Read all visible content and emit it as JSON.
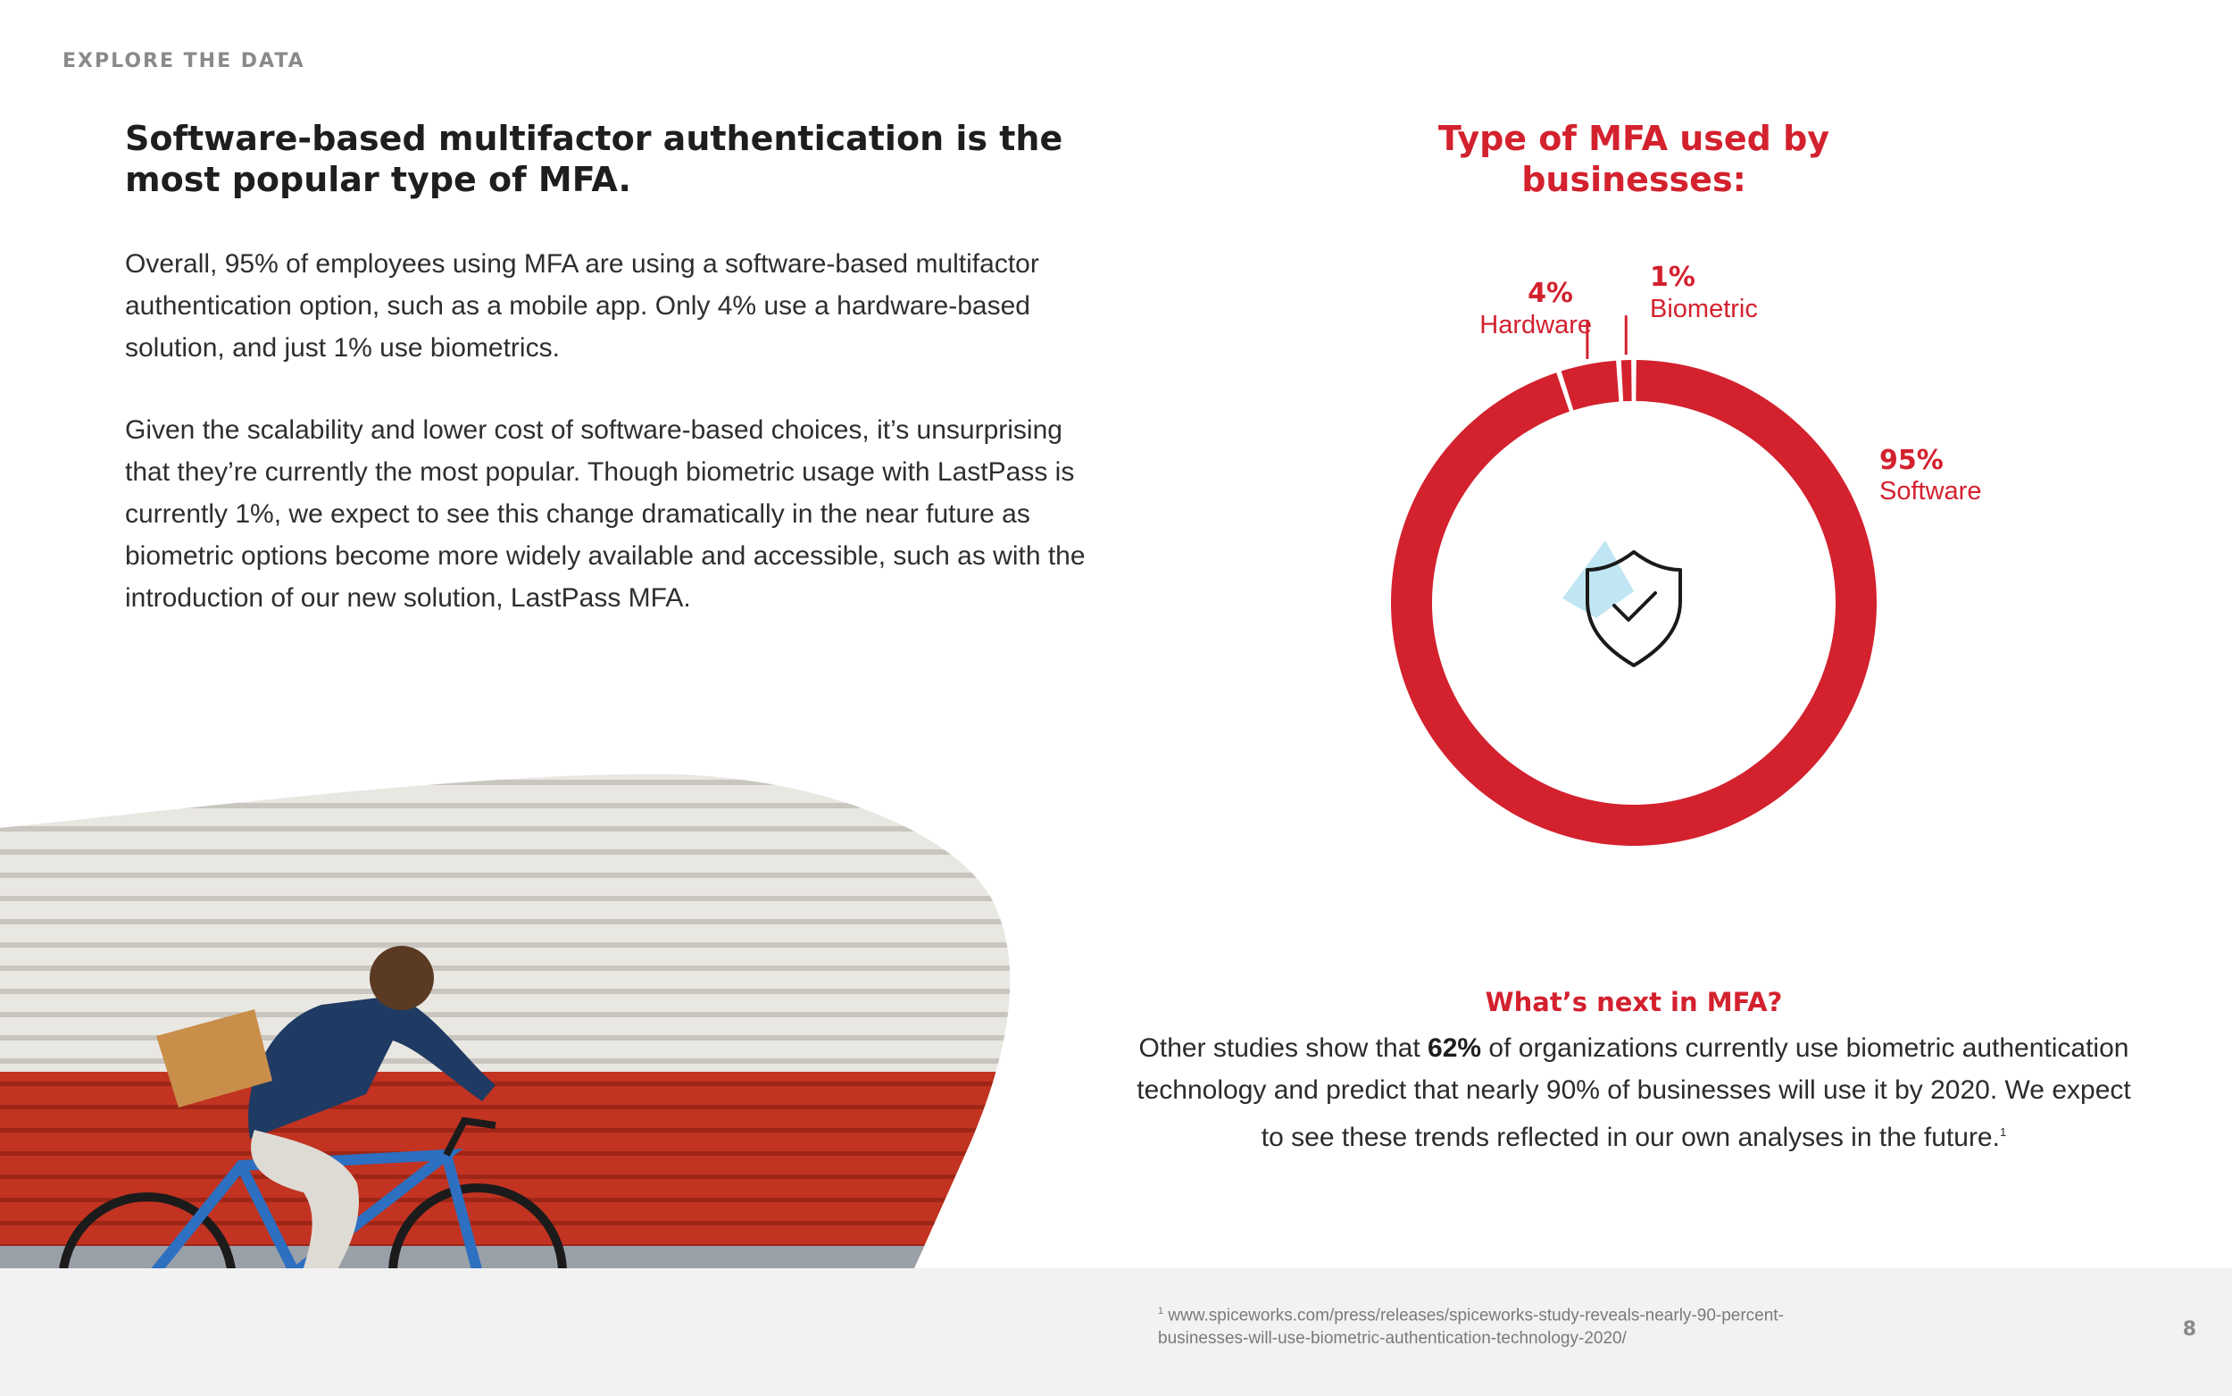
{
  "eyebrow": "EXPLORE THE DATA",
  "headline": "Software-based multifactor authentication is the most popular type of MFA.",
  "paragraph1": "Overall, 95% of employees using MFA are using a software-based multifactor authentication option, such as a mobile app. Only 4% use a hardware-based solution, and just 1% use biometrics.",
  "paragraph2": "Given the scalability and lower cost of software-based choices, it’s unsurprising that they’re currently the most popular. Though biometric usage with LastPass is currently 1%, we expect to see this change dramatically in the near future as biometric options become more widely available and accessible, such as with the introduction of our new solution, LastPass MFA.",
  "chart_data": {
    "type": "pie",
    "title": "Type of MFA used by businesses:",
    "style": "donut",
    "center_icon": "shield-check-icon",
    "slices": [
      {
        "label": "Software",
        "value": 95,
        "value_label": "95%",
        "color": "#d3212e"
      },
      {
        "label": "Hardware",
        "value": 4,
        "value_label": "4%",
        "color": "#d3212e"
      },
      {
        "label": "Biometric",
        "value": 1,
        "value_label": "1%",
        "color": "#d3212e"
      }
    ]
  },
  "next": {
    "title": "What’s next in MFA?",
    "text_before": "Other studies show that ",
    "highlight": "62%",
    "text_after": " of organizations currently use biometric authentication technology and predict that nearly 90% of businesses will use it by 2020. We expect to see these trends reflected in our own analyses in the future.",
    "footnote_ref": "1"
  },
  "footnote": {
    "marker": "1",
    "text": "www.spiceworks.com/press/releases/spiceworks-study-reveals-nearly-90-percent-businesses-will-use-biometric-authentication-technology-2020/"
  },
  "page_number": "8",
  "colors": {
    "accent": "#d3212e",
    "heading": "#1e1e1e",
    "body": "#2e2e2e",
    "muted": "#8a8a8a",
    "icon_tint": "#bfe6f2"
  }
}
